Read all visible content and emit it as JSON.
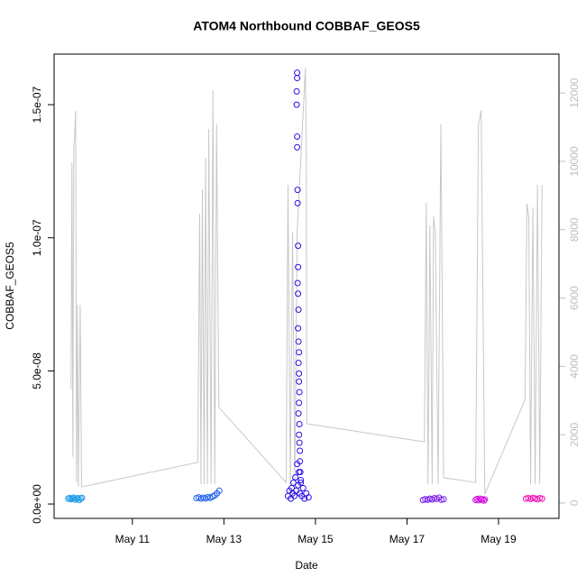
{
  "chart_data": {
    "type": "scatter",
    "title": "ATOM4 Northbound COBBAF_GEOS5",
    "x_label": "Date",
    "y_label": "COBBAF_GEOS5",
    "xlim": [
      9.29,
      20.32
    ],
    "xticks": [
      {
        "value": 11,
        "label": "May 11"
      },
      {
        "value": 13,
        "label": "May 13"
      },
      {
        "value": 15,
        "label": "May 15"
      },
      {
        "value": 17,
        "label": "May 17"
      },
      {
        "value": 19,
        "label": "May 19"
      }
    ],
    "ylim": [
      -5.4e-09,
      1.69e-07
    ],
    "yticks": [
      {
        "value": 0,
        "label": "0.0e+00"
      },
      {
        "value": 5e-08,
        "label": "5.0e-08"
      },
      {
        "value": 1e-07,
        "label": "1.0e-07"
      },
      {
        "value": 1.5e-07,
        "label": "1.5e-07"
      }
    ],
    "y2lim": [
      -450,
      13140
    ],
    "y2ticks": [
      0,
      2000,
      4000,
      6000,
      8000,
      10000,
      12000
    ],
    "y2_color": "#bdbdbd",
    "series": [
      {
        "color": "#1e9be8",
        "x": [
          9.6,
          9.63,
          9.66,
          9.69,
          9.72,
          9.75,
          9.78,
          9.81,
          9.84,
          9.87,
          9.9
        ],
        "values": [
          2e-09,
          2.3e-09,
          1.8e-09,
          2.1e-09,
          2.4e-09,
          1.6e-09,
          2e-09,
          2.2e-09,
          1.5e-09,
          2.1e-09,
          2.3e-09
        ]
      },
      {
        "color": "#1a5ee8",
        "x": [
          12.4,
          12.45,
          12.5,
          12.55,
          12.6,
          12.65,
          12.7,
          12.75,
          12.8,
          12.85,
          12.9
        ],
        "values": [
          2.2e-09,
          2.5e-09,
          2e-09,
          2.4e-09,
          2.1e-09,
          2.6e-09,
          2.3e-09,
          2.8e-09,
          3.2e-09,
          4e-09,
          5e-09
        ]
      },
      {
        "color": "#2a10e8",
        "x": [
          14.4,
          14.43,
          14.46,
          14.48,
          14.5,
          14.52,
          14.54,
          14.56,
          14.58,
          14.6,
          14.62,
          14.64,
          14.66,
          14.68,
          14.7,
          14.73,
          14.76,
          14.8,
          14.85,
          14.6,
          14.6,
          14.59,
          14.59,
          14.6,
          14.6,
          14.61,
          14.61,
          14.62,
          14.62,
          14.61,
          14.62,
          14.63,
          14.62,
          14.63,
          14.64,
          14.63,
          14.64,
          14.64,
          14.65,
          14.64,
          14.63,
          14.65,
          14.64,
          14.65,
          14.66,
          14.66,
          14.67,
          14.68
        ],
        "values": [
          3e-09,
          5e-09,
          2e-09,
          6e-09,
          4e-09,
          8e-09,
          3e-09,
          1e-08,
          5e-09,
          1.5e-08,
          7e-09,
          1.2e-08,
          4e-09,
          9e-09,
          3e-09,
          6e-09,
          2e-09,
          4e-09,
          2.5e-09,
          1.62e-07,
          1.6e-07,
          1.55e-07,
          1.5e-07,
          1.38e-07,
          1.34e-07,
          1.18e-07,
          1.13e-07,
          9.7e-08,
          8.9e-08,
          8.3e-08,
          7.9e-08,
          7.3e-08,
          6.6e-08,
          6.1e-08,
          5.7e-08,
          5.3e-08,
          4.9e-08,
          4.6e-08,
          4.2e-08,
          3.8e-08,
          3.4e-08,
          3e-08,
          2.6e-08,
          2.3e-08,
          2e-08,
          1.6e-08,
          1.2e-08,
          8e-09
        ]
      },
      {
        "color": "#7a1ae8",
        "x": [
          17.35,
          17.4,
          17.45,
          17.5,
          17.55,
          17.6,
          17.65,
          17.7,
          17.75,
          17.8
        ],
        "values": [
          1.5e-09,
          1.8e-09,
          1.6e-09,
          2e-09,
          1.7e-09,
          2.2e-09,
          1.9e-09,
          2.4e-09,
          1.6e-09,
          1.8e-09
        ]
      },
      {
        "color": "#d610e0",
        "x": [
          18.5,
          18.53,
          18.56,
          18.59,
          18.62,
          18.65,
          18.68,
          18.7
        ],
        "values": [
          1.5e-09,
          1.9e-09,
          1.4e-09,
          2e-09,
          1.6e-09,
          1.8e-09,
          1.3e-09,
          1.7e-09
        ]
      },
      {
        "color": "#f010b0",
        "x": [
          19.6,
          19.65,
          19.7,
          19.75,
          19.8,
          19.85,
          19.9,
          19.95
        ],
        "values": [
          2e-09,
          2.2e-09,
          1.9e-09,
          2.3e-09,
          2.1e-09,
          1.8e-09,
          2.2e-09,
          2e-09
        ]
      },
      {
        "type": "line",
        "axis": "y2",
        "color": "#c8c8c8",
        "x": [
          9.66,
          9.68,
          9.7,
          9.72,
          9.74,
          9.76,
          9.78,
          9.8,
          9.82,
          9.86,
          9.89,
          12.43,
          12.47,
          12.5,
          12.53,
          12.57,
          12.6,
          12.64,
          12.67,
          12.72,
          12.76,
          12.8,
          12.84,
          12.89,
          14.36,
          14.4,
          14.45,
          14.5,
          14.55,
          14.6,
          14.78,
          14.8,
          14.81,
          17.38,
          17.42,
          17.46,
          17.5,
          17.55,
          17.58,
          17.62,
          17.68,
          17.74,
          17.8,
          18.5,
          18.56,
          18.62,
          18.7,
          19.58,
          19.62,
          19.66,
          19.7,
          19.75,
          19.8,
          19.85,
          19.9,
          19.95
        ],
        "values": [
          3330,
          9970,
          1350,
          10370,
          10760,
          11480,
          600,
          5800,
          470,
          5800,
          470,
          1190,
          8470,
          550,
          9180,
          550,
          10100,
          550,
          10950,
          550,
          12080,
          550,
          11080,
          2800,
          600,
          9310,
          540,
          7920,
          540,
          7920,
          12740,
          10370,
          2320,
          1790,
          8790,
          545,
          8130,
          540,
          8390,
          7860,
          545,
          11080,
          740,
          600,
          11030,
          11500,
          260,
          3030,
          8760,
          8390,
          545,
          8650,
          545,
          9310,
          545,
          9310
        ]
      }
    ]
  }
}
